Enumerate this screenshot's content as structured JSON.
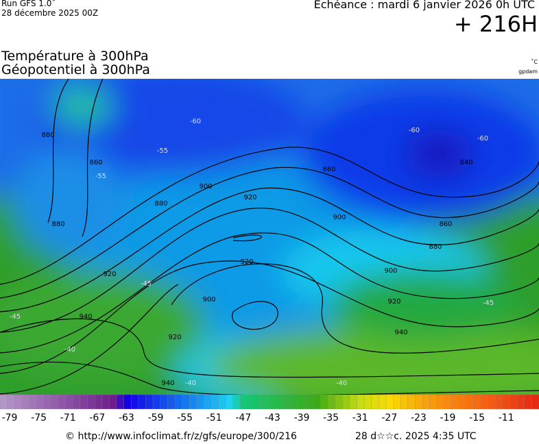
{
  "header": {
    "run": "Run GFS 1.0˚",
    "date": "28 décembre 2025 00Z",
    "echeance": "Echéance : mardi 6 janvier 2026 0h UTC",
    "lead": "+ 216H",
    "title1": "Température à 300hPa",
    "title2": "Géopotentiel à 300hPa",
    "unit1": "˚C",
    "unit2": "gpdam"
  },
  "map": {
    "height_labels": [
      "880",
      "860",
      "880",
      "880",
      "900",
      "920",
      "920",
      "900",
      "920",
      "940",
      "920",
      "940",
      "860",
      "900",
      "840",
      "860",
      "880",
      "900",
      "920",
      "940"
    ],
    "temp_labels": [
      "-60",
      "-55",
      "-55",
      "-60",
      "-60",
      "-45",
      "-45",
      "-40",
      "-40",
      "-45",
      "-40"
    ]
  },
  "legend": {
    "labels": [
      -79,
      -75,
      -71,
      -67,
      -63,
      -59,
      -55,
      -51,
      -47,
      -43,
      -39,
      -35,
      -31,
      -27,
      -23,
      -19,
      -15,
      -11
    ]
  },
  "footer": {
    "url": "© http://www.infoclimat.fr/z/gfs/europe/300/216",
    "time": "28 d☆☆c. 2025  4:35 UTC"
  }
}
